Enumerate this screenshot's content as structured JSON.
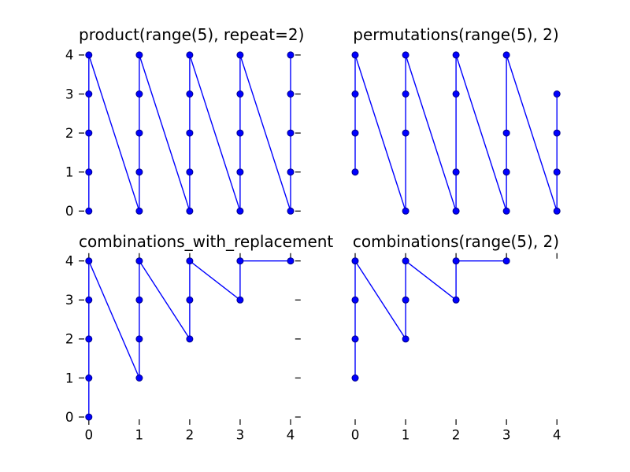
{
  "figure": {
    "background": "#ffffff",
    "text_color": "#000000",
    "tick_color": "#000000",
    "line_color": "#0000ff",
    "marker_face": "#0000ff",
    "marker_edge": "#00008b"
  },
  "chart_data": [
    {
      "type": "line",
      "title": "product(range(5), repeat=2)",
      "xlim": [
        -0.2,
        4.2
      ],
      "ylim": [
        -0.2,
        4.2
      ],
      "xticks": [
        0,
        1,
        2,
        3,
        4
      ],
      "yticks": [
        0,
        1,
        2,
        3,
        4
      ],
      "xtick_labels": [
        "0",
        "1",
        "2",
        "3",
        "4"
      ],
      "ytick_labels": [
        "0",
        "1",
        "2",
        "3",
        "4"
      ],
      "ticks": {
        "left": true,
        "right": true,
        "top": false,
        "bottom": false,
        "left_labels": true,
        "bottom_labels": false
      },
      "grid": false,
      "sequence": [
        [
          0,
          0
        ],
        [
          0,
          1
        ],
        [
          0,
          2
        ],
        [
          0,
          3
        ],
        [
          0,
          4
        ],
        [
          1,
          0
        ],
        [
          1,
          1
        ],
        [
          1,
          2
        ],
        [
          1,
          3
        ],
        [
          1,
          4
        ],
        [
          2,
          0
        ],
        [
          2,
          1
        ],
        [
          2,
          2
        ],
        [
          2,
          3
        ],
        [
          2,
          4
        ],
        [
          3,
          0
        ],
        [
          3,
          1
        ],
        [
          3,
          2
        ],
        [
          3,
          3
        ],
        [
          3,
          4
        ],
        [
          4,
          0
        ],
        [
          4,
          1
        ],
        [
          4,
          2
        ],
        [
          4,
          3
        ],
        [
          4,
          4
        ]
      ]
    },
    {
      "type": "line",
      "title": "permutations(range(5), 2)",
      "xlim": [
        -0.2,
        4.2
      ],
      "ylim": [
        -0.2,
        4.2
      ],
      "xticks": [
        0,
        1,
        2,
        3,
        4
      ],
      "yticks": [
        0,
        1,
        2,
        3,
        4
      ],
      "xtick_labels": [
        "0",
        "1",
        "2",
        "3",
        "4"
      ],
      "ytick_labels": [
        "0",
        "1",
        "2",
        "3",
        "4"
      ],
      "ticks": {
        "left": false,
        "right": false,
        "top": false,
        "bottom": false,
        "left_labels": false,
        "bottom_labels": false
      },
      "grid": false,
      "sequence": [
        [
          0,
          1
        ],
        [
          0,
          2
        ],
        [
          0,
          3
        ],
        [
          0,
          4
        ],
        [
          1,
          0
        ],
        [
          1,
          2
        ],
        [
          1,
          3
        ],
        [
          1,
          4
        ],
        [
          2,
          0
        ],
        [
          2,
          1
        ],
        [
          2,
          3
        ],
        [
          2,
          4
        ],
        [
          3,
          0
        ],
        [
          3,
          1
        ],
        [
          3,
          2
        ],
        [
          3,
          4
        ],
        [
          4,
          0
        ],
        [
          4,
          1
        ],
        [
          4,
          2
        ],
        [
          4,
          3
        ]
      ]
    },
    {
      "type": "line",
      "title": "combinations_with_replacement",
      "xlim": [
        -0.2,
        4.2
      ],
      "ylim": [
        -0.2,
        4.2
      ],
      "xticks": [
        0,
        1,
        2,
        3,
        4
      ],
      "yticks": [
        0,
        1,
        2,
        3,
        4
      ],
      "xtick_labels": [
        "0",
        "1",
        "2",
        "3",
        "4"
      ],
      "ytick_labels": [
        "0",
        "1",
        "2",
        "3",
        "4"
      ],
      "ticks": {
        "left": true,
        "right": true,
        "top": true,
        "bottom": true,
        "left_labels": true,
        "bottom_labels": true
      },
      "grid": false,
      "sequence": [
        [
          0,
          0
        ],
        [
          0,
          1
        ],
        [
          0,
          2
        ],
        [
          0,
          3
        ],
        [
          0,
          4
        ],
        [
          1,
          1
        ],
        [
          1,
          2
        ],
        [
          1,
          3
        ],
        [
          1,
          4
        ],
        [
          2,
          2
        ],
        [
          2,
          3
        ],
        [
          2,
          4
        ],
        [
          3,
          3
        ],
        [
          3,
          4
        ],
        [
          4,
          4
        ]
      ]
    },
    {
      "type": "line",
      "title": "combinations(range(5), 2)",
      "xlim": [
        -0.2,
        4.2
      ],
      "ylim": [
        -0.2,
        4.2
      ],
      "xticks": [
        0,
        1,
        2,
        3,
        4
      ],
      "yticks": [
        0,
        1,
        2,
        3,
        4
      ],
      "xtick_labels": [
        "0",
        "1",
        "2",
        "3",
        "4"
      ],
      "ytick_labels": [
        "0",
        "1",
        "2",
        "3",
        "4"
      ],
      "ticks": {
        "left": false,
        "right": false,
        "top": true,
        "bottom": true,
        "left_labels": false,
        "bottom_labels": true
      },
      "grid": false,
      "sequence": [
        [
          0,
          1
        ],
        [
          0,
          2
        ],
        [
          0,
          3
        ],
        [
          0,
          4
        ],
        [
          1,
          2
        ],
        [
          1,
          3
        ],
        [
          1,
          4
        ],
        [
          2,
          3
        ],
        [
          2,
          4
        ],
        [
          3,
          4
        ]
      ]
    }
  ]
}
